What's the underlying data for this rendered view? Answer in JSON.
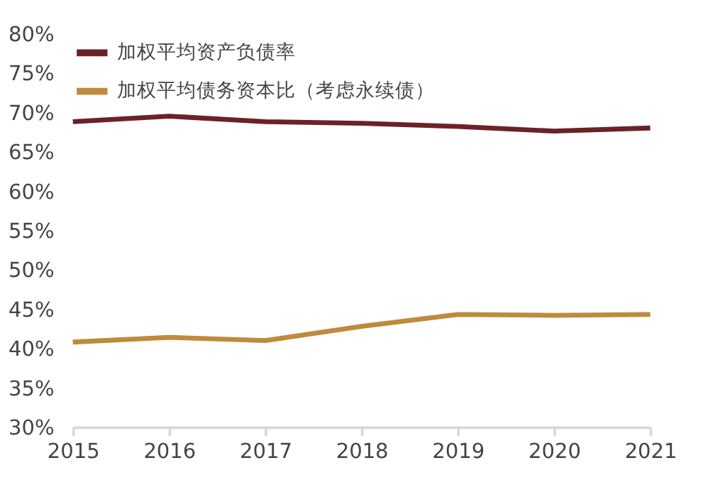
{
  "chart_data": {
    "type": "line",
    "categories": [
      "2015",
      "2016",
      "2017",
      "2018",
      "2019",
      "2020",
      "2021"
    ],
    "series": [
      {
        "name": "加权平均资产负债率",
        "color": "#6b2226",
        "values": [
          68.8,
          69.5,
          68.8,
          68.6,
          68.2,
          67.6,
          68.0
        ]
      },
      {
        "name": "加权平均债务资本比（考虑永续债）",
        "color": "#c08a3e",
        "values": [
          40.8,
          41.4,
          41.0,
          42.8,
          44.3,
          44.2,
          44.3
        ]
      }
    ],
    "ylim": [
      30,
      80
    ],
    "yticks": [
      {
        "value": 30,
        "label": "30%"
      },
      {
        "value": 35,
        "label": "35%"
      },
      {
        "value": 40,
        "label": "40%"
      },
      {
        "value": 45,
        "label": "45%"
      },
      {
        "value": 50,
        "label": "50%"
      },
      {
        "value": 55,
        "label": "55%"
      },
      {
        "value": 60,
        "label": "60%"
      },
      {
        "value": 65,
        "label": "65%"
      },
      {
        "value": 70,
        "label": "70%"
      },
      {
        "value": 75,
        "label": "75%"
      },
      {
        "value": 80,
        "label": "80%"
      }
    ],
    "grid": false,
    "legend": "top left",
    "marker": "none",
    "line_style": "solid"
  }
}
